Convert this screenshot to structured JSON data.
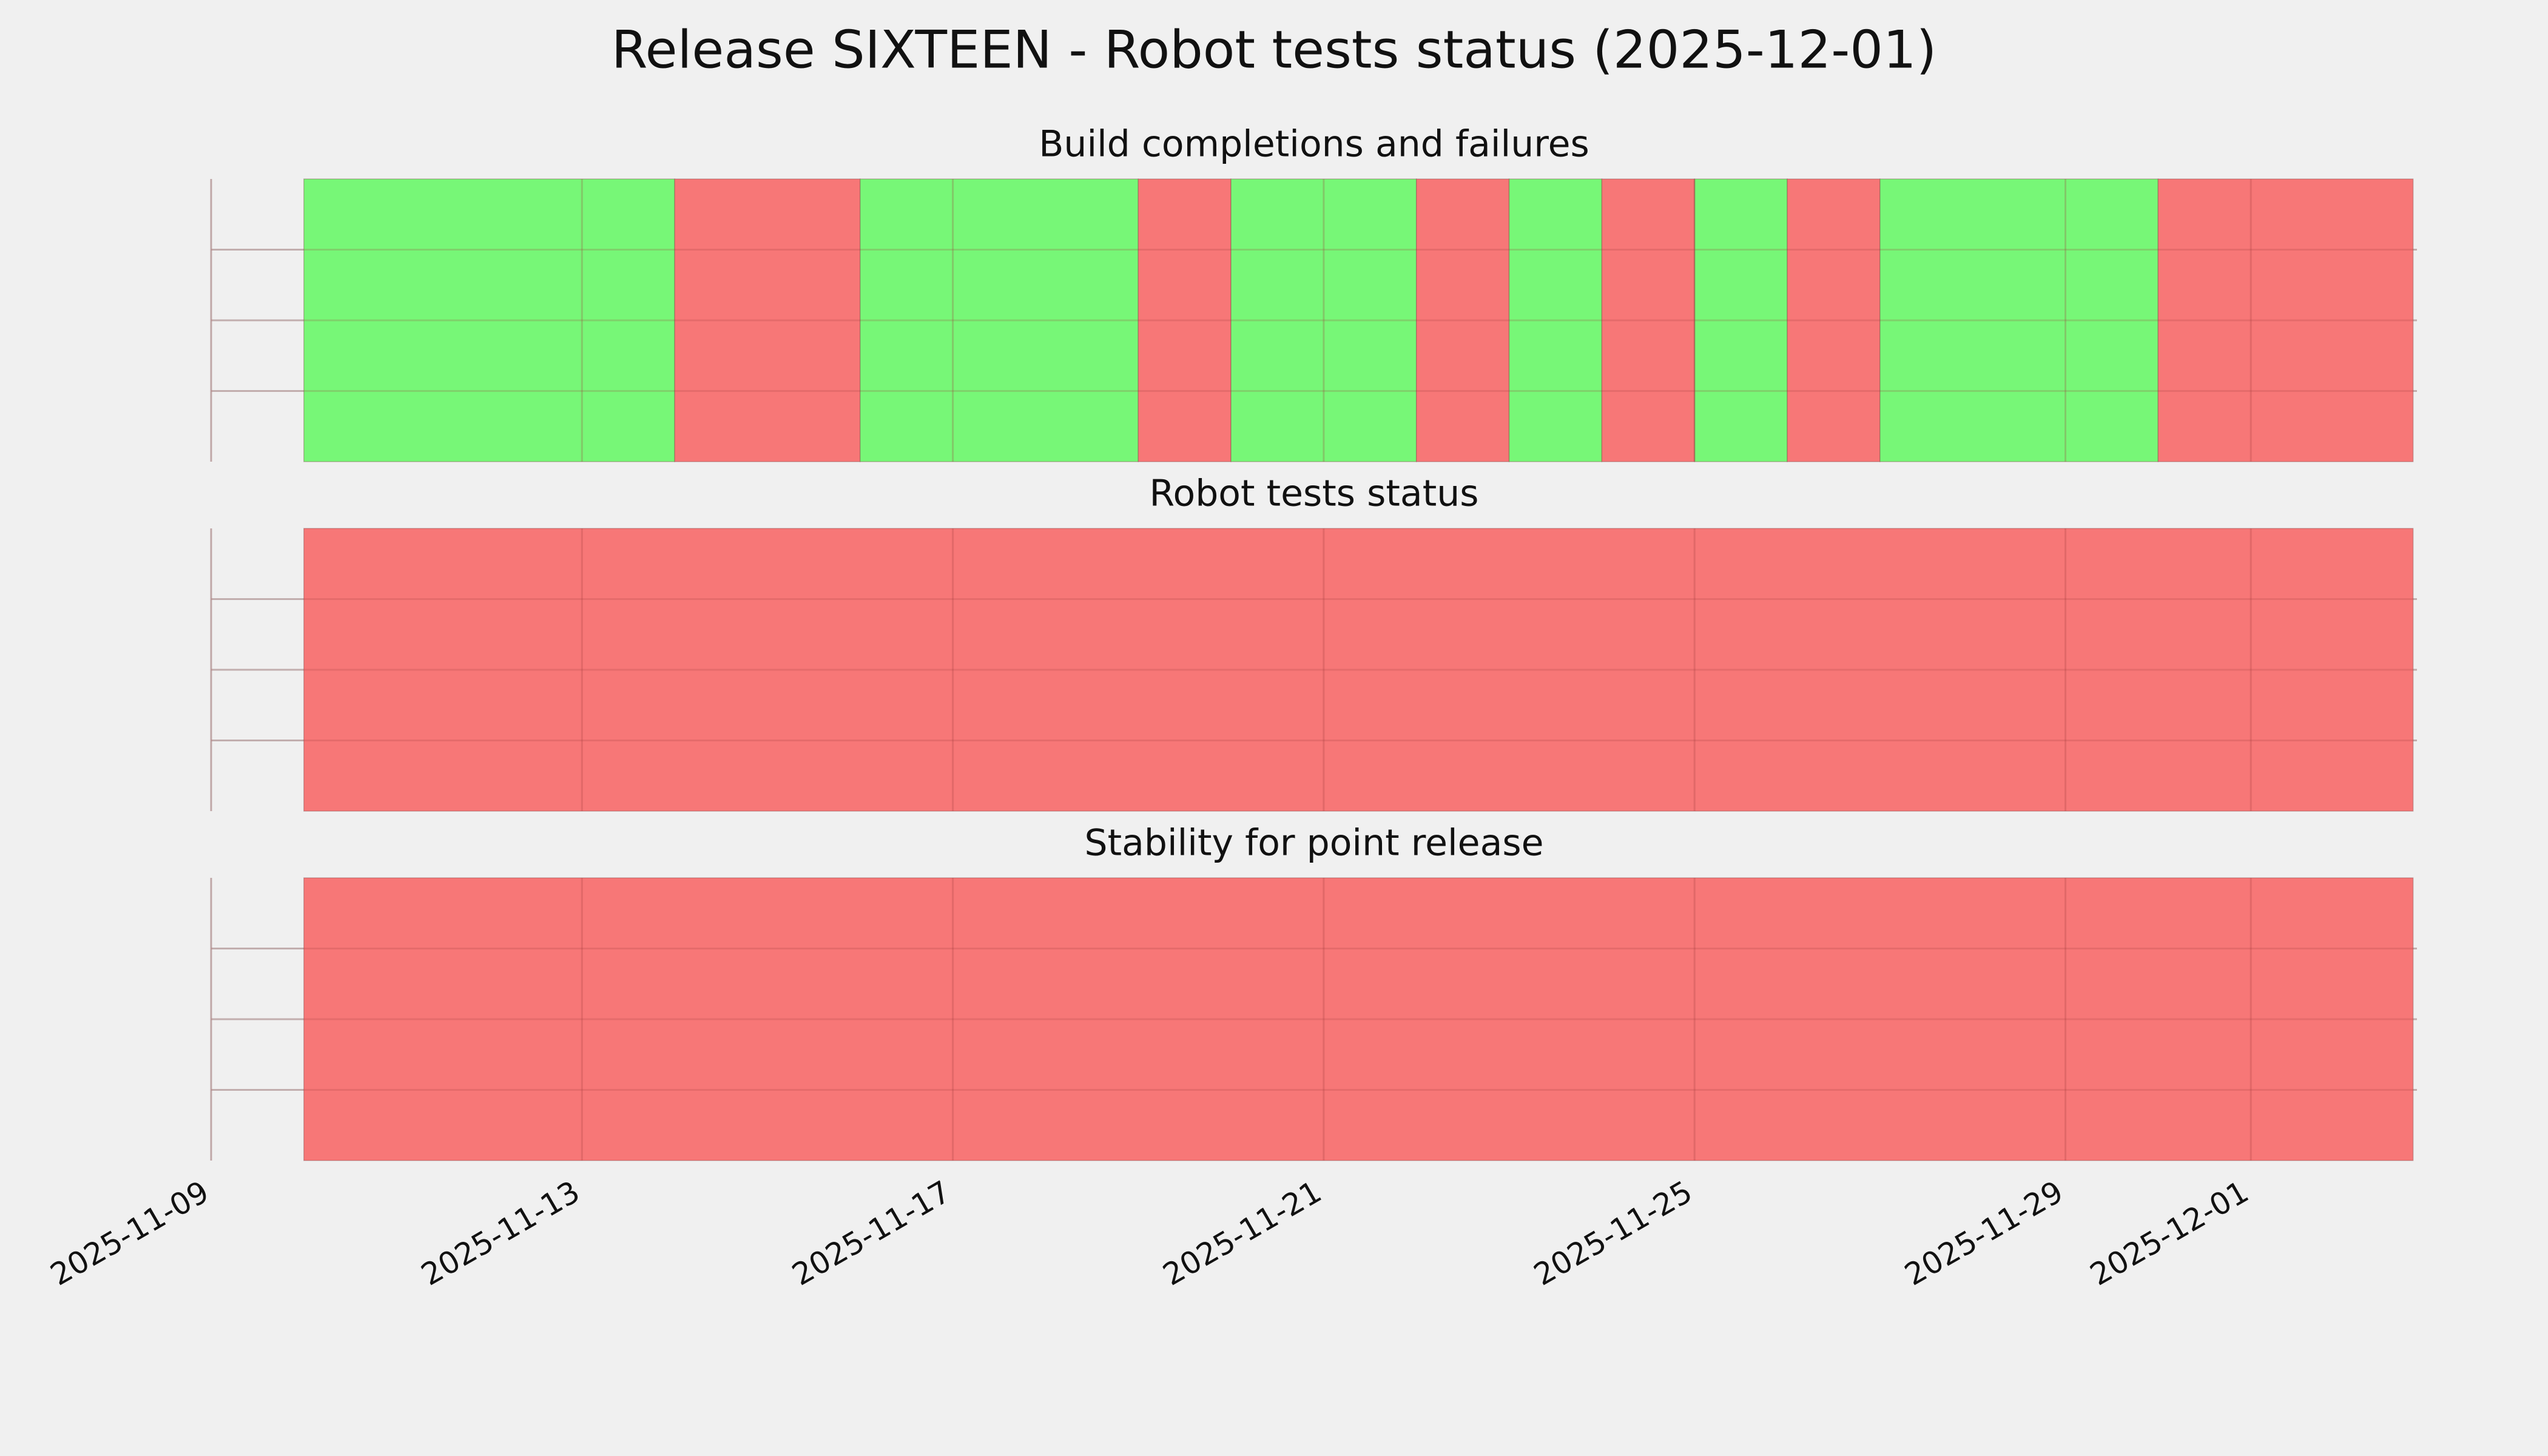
{
  "title": "Release SIXTEEN - Robot tests status (2025-12-01)",
  "chart_data": [
    {
      "type": "timeline",
      "title": "Build completions and failures",
      "xlim": [
        "2025-11-09",
        "2025-12-02T19:00"
      ],
      "ylim": [
        0,
        1
      ],
      "yticks": [
        0.25,
        0.5,
        0.75
      ],
      "grid": true,
      "segments": [
        {
          "start": "2025-11-10",
          "end": "2025-11-14",
          "color": "#77f777"
        },
        {
          "start": "2025-11-14",
          "end": "2025-11-16",
          "color": "#f77777"
        },
        {
          "start": "2025-11-16",
          "end": "2025-11-19",
          "color": "#77f777"
        },
        {
          "start": "2025-11-19",
          "end": "2025-11-20",
          "color": "#f77777"
        },
        {
          "start": "2025-11-20",
          "end": "2025-11-22",
          "color": "#77f777"
        },
        {
          "start": "2025-11-22",
          "end": "2025-11-23",
          "color": "#f77777"
        },
        {
          "start": "2025-11-23",
          "end": "2025-11-24",
          "color": "#77f777"
        },
        {
          "start": "2025-11-24",
          "end": "2025-11-25",
          "color": "#f77777"
        },
        {
          "start": "2025-11-25",
          "end": "2025-11-26",
          "color": "#77f777"
        },
        {
          "start": "2025-11-26",
          "end": "2025-11-27",
          "color": "#f77777"
        },
        {
          "start": "2025-11-27",
          "end": "2025-11-30",
          "color": "#77f777"
        },
        {
          "start": "2025-11-30",
          "end": "2025-12-02T18:00",
          "color": "#f77777"
        }
      ]
    },
    {
      "type": "timeline",
      "title": "Robot tests status",
      "xlim": [
        "2025-11-09",
        "2025-12-02T19:00"
      ],
      "ylim": [
        0,
        1
      ],
      "yticks": [
        0.25,
        0.5,
        0.75
      ],
      "grid": true,
      "segments": [
        {
          "start": "2025-11-10",
          "end": "2025-12-02T18:00",
          "color": "#f77777"
        }
      ]
    },
    {
      "type": "timeline",
      "title": "Stability for point release",
      "xlim": [
        "2025-11-09",
        "2025-12-02T19:00"
      ],
      "ylim": [
        0,
        1
      ],
      "yticks": [
        0.25,
        0.5,
        0.75
      ],
      "grid": true,
      "xticks": [
        "2025-11-09",
        "2025-11-13",
        "2025-11-17",
        "2025-11-21",
        "2025-11-25",
        "2025-11-29",
        "2025-12-01"
      ],
      "segments": [
        {
          "start": "2025-11-10",
          "end": "2025-12-02T18:00",
          "color": "#f77777"
        }
      ]
    }
  ]
}
